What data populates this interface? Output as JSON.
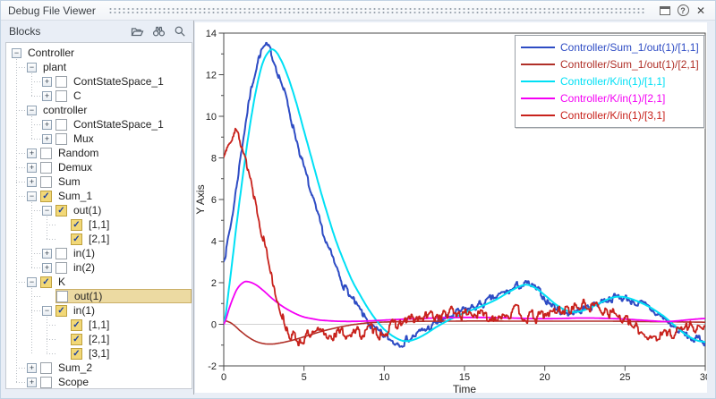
{
  "titlebar": {
    "title": "Debug File Viewer",
    "help_glyph": "?",
    "close_glyph": "✕"
  },
  "left_panel": {
    "header_label": "Blocks",
    "glyphs": {
      "collapse": "−",
      "expand": "+",
      "check": "✓"
    },
    "tree": [
      {
        "label": "Controller",
        "level": 0,
        "expander": "minus"
      },
      {
        "label": "plant",
        "level": 1,
        "expander": "minus"
      },
      {
        "label": "ContStateSpace_1",
        "level": 2,
        "expander": "plus",
        "checkbox": "unchecked"
      },
      {
        "label": "C",
        "level": 2,
        "expander": "plus",
        "checkbox": "unchecked"
      },
      {
        "label": "controller",
        "level": 1,
        "expander": "minus"
      },
      {
        "label": "ContStateSpace_1",
        "level": 2,
        "expander": "plus",
        "checkbox": "unchecked"
      },
      {
        "label": "Mux",
        "level": 2,
        "expander": "plus",
        "checkbox": "unchecked"
      },
      {
        "label": "Random",
        "level": 1,
        "expander": "plus",
        "checkbox": "unchecked"
      },
      {
        "label": "Demux",
        "level": 1,
        "expander": "plus",
        "checkbox": "unchecked"
      },
      {
        "label": "Sum",
        "level": 1,
        "expander": "plus",
        "checkbox": "unchecked"
      },
      {
        "label": "Sum_1",
        "level": 1,
        "expander": "minus",
        "checkbox": "checked"
      },
      {
        "label": "out(1)",
        "level": 2,
        "expander": "minus",
        "checkbox": "checked"
      },
      {
        "label": "[1,1]",
        "level": 3,
        "checkbox": "checked"
      },
      {
        "label": "[2,1]",
        "level": 3,
        "checkbox": "checked"
      },
      {
        "label": "in(1)",
        "level": 2,
        "expander": "plus",
        "checkbox": "unchecked"
      },
      {
        "label": "in(2)",
        "level": 2,
        "expander": "plus",
        "checkbox": "unchecked"
      },
      {
        "label": "K",
        "level": 1,
        "expander": "minus",
        "checkbox": "checked"
      },
      {
        "label": "out(1)",
        "level": 2,
        "checkbox": "unchecked",
        "selected": true
      },
      {
        "label": "in(1)",
        "level": 2,
        "expander": "minus",
        "checkbox": "checked"
      },
      {
        "label": "[1,1]",
        "level": 3,
        "checkbox": "checked"
      },
      {
        "label": "[2,1]",
        "level": 3,
        "checkbox": "checked"
      },
      {
        "label": "[3,1]",
        "level": 3,
        "checkbox": "checked"
      },
      {
        "label": "Sum_2",
        "level": 1,
        "expander": "plus",
        "checkbox": "unchecked"
      },
      {
        "label": "Scope",
        "level": 1,
        "expander": "plus",
        "checkbox": "unchecked"
      }
    ]
  },
  "chart_data": {
    "type": "line",
    "xlabel": "Time",
    "ylabel": "Y Axis",
    "xlim": [
      0,
      30
    ],
    "ylim": [
      -2,
      14
    ],
    "xticks": [
      0,
      5,
      10,
      15,
      20,
      25,
      30
    ],
    "yticks": [
      -2,
      0,
      2,
      4,
      6,
      8,
      10,
      12,
      14
    ],
    "y_minor_step": 1,
    "zero_gridline": true,
    "grid": false,
    "legend_position": "top-right",
    "series": [
      {
        "name": "Controller/Sum_1/out(1)/[1,1]",
        "color": "#2e4cc4",
        "width": 2.0,
        "noise": 0.35,
        "seed": 7,
        "points": [
          [
            0,
            3.2
          ],
          [
            0.3,
            4.2
          ],
          [
            0.6,
            5.6
          ],
          [
            1,
            7.8
          ],
          [
            1.4,
            9.9
          ],
          [
            1.8,
            11.6
          ],
          [
            2.1,
            12.6
          ],
          [
            2.4,
            13.2
          ],
          [
            2.7,
            13.3
          ],
          [
            3,
            12.9
          ],
          [
            3.4,
            12.1
          ],
          [
            3.8,
            11.1
          ],
          [
            4.2,
            9.9
          ],
          [
            4.6,
            8.7
          ],
          [
            5,
            7.5
          ],
          [
            5.5,
            6.1
          ],
          [
            6,
            4.8
          ],
          [
            6.5,
            3.7
          ],
          [
            7,
            2.7
          ],
          [
            7.5,
            1.9
          ],
          [
            8,
            1.2
          ],
          [
            8.5,
            0.6
          ],
          [
            9,
            0.1
          ],
          [
            9.5,
            -0.35
          ],
          [
            10,
            -0.6
          ],
          [
            10.7,
            -0.85
          ],
          [
            11.3,
            -0.75
          ],
          [
            12,
            -0.5
          ],
          [
            12.7,
            -0.2
          ],
          [
            13.5,
            0.15
          ],
          [
            14.5,
            0.5
          ],
          [
            15.5,
            0.8
          ],
          [
            16.2,
            1.0
          ],
          [
            17,
            1.3
          ],
          [
            17.8,
            1.6
          ],
          [
            18.6,
            1.9
          ],
          [
            19.2,
            1.8
          ],
          [
            19.8,
            1.4
          ],
          [
            20.5,
            0.9
          ],
          [
            21.2,
            0.6
          ],
          [
            21.8,
            0.6
          ],
          [
            22.5,
            0.75
          ],
          [
            23.2,
            1.0
          ],
          [
            24,
            1.25
          ],
          [
            24.6,
            1.3
          ],
          [
            25.2,
            1.2
          ],
          [
            26,
            0.95
          ],
          [
            26.7,
            0.65
          ],
          [
            27.4,
            0.3
          ],
          [
            28,
            -0.1
          ],
          [
            28.6,
            -0.45
          ],
          [
            29.2,
            -0.7
          ],
          [
            30,
            -0.8
          ]
        ]
      },
      {
        "name": "Controller/Sum_1/out(1)/[2,1]",
        "color": "#b03028",
        "width": 1.6,
        "noise": 0,
        "seed": 1,
        "points": [
          [
            0,
            0.18
          ],
          [
            0.3,
            0.12
          ],
          [
            0.6,
            -0.02
          ],
          [
            1,
            -0.3
          ],
          [
            1.5,
            -0.6
          ],
          [
            2,
            -0.82
          ],
          [
            2.5,
            -0.93
          ],
          [
            3,
            -0.95
          ],
          [
            3.5,
            -0.9
          ],
          [
            4,
            -0.82
          ],
          [
            4.5,
            -0.72
          ],
          [
            5,
            -0.6
          ],
          [
            5.5,
            -0.48
          ],
          [
            6,
            -0.36
          ],
          [
            6.5,
            -0.26
          ],
          [
            7,
            -0.17
          ],
          [
            7.5,
            -0.09
          ],
          [
            8,
            -0.02
          ],
          [
            9,
            0.07
          ],
          [
            10,
            0.11
          ],
          [
            12,
            0.14
          ],
          [
            14,
            0.15
          ],
          [
            16,
            0.16
          ],
          [
            18,
            0.15
          ],
          [
            20,
            0.15
          ],
          [
            22,
            0.15
          ],
          [
            24,
            0.15
          ],
          [
            26,
            0.13
          ],
          [
            28,
            0.12
          ],
          [
            30,
            0.1
          ]
        ]
      },
      {
        "name": "Controller/K/in(1)/[1,1]",
        "color": "#00e0f5",
        "width": 2.0,
        "noise": 0,
        "seed": 1,
        "points": [
          [
            0,
            0
          ],
          [
            0.4,
            2.2
          ],
          [
            0.8,
            4.8
          ],
          [
            1.2,
            7.2
          ],
          [
            1.6,
            9.4
          ],
          [
            2,
            11.2
          ],
          [
            2.4,
            12.5
          ],
          [
            2.8,
            13.1
          ],
          [
            3.1,
            13.2
          ],
          [
            3.5,
            12.8
          ],
          [
            4,
            11.9
          ],
          [
            4.5,
            10.7
          ],
          [
            5,
            9.3
          ],
          [
            5.5,
            7.9
          ],
          [
            6,
            6.5
          ],
          [
            6.5,
            5.2
          ],
          [
            7,
            4.0
          ],
          [
            7.5,
            3.0
          ],
          [
            8,
            2.1
          ],
          [
            8.5,
            1.4
          ],
          [
            9,
            0.75
          ],
          [
            9.5,
            0.2
          ],
          [
            10,
            -0.25
          ],
          [
            10.6,
            -0.6
          ],
          [
            11.2,
            -0.8
          ],
          [
            11.8,
            -0.75
          ],
          [
            12.5,
            -0.5
          ],
          [
            13.2,
            -0.15
          ],
          [
            14,
            0.2
          ],
          [
            15,
            0.55
          ],
          [
            16,
            0.85
          ],
          [
            17,
            1.2
          ],
          [
            18,
            1.65
          ],
          [
            18.8,
            1.9
          ],
          [
            19.4,
            1.75
          ],
          [
            20,
            1.4
          ],
          [
            20.7,
            0.95
          ],
          [
            21.4,
            0.65
          ],
          [
            22,
            0.6
          ],
          [
            22.7,
            0.75
          ],
          [
            23.5,
            1.05
          ],
          [
            24.3,
            1.3
          ],
          [
            25,
            1.3
          ],
          [
            25.8,
            1.1
          ],
          [
            26.6,
            0.8
          ],
          [
            27.4,
            0.4
          ],
          [
            28,
            0.0
          ],
          [
            28.7,
            -0.45
          ],
          [
            29.4,
            -0.75
          ],
          [
            30,
            -0.85
          ]
        ]
      },
      {
        "name": "Controller/K/in(1)/[2,1]",
        "color": "#f400f4",
        "width": 1.8,
        "noise": 0,
        "seed": 1,
        "points": [
          [
            0,
            0
          ],
          [
            0.4,
            0.9
          ],
          [
            0.8,
            1.65
          ],
          [
            1.2,
            2.0
          ],
          [
            1.5,
            2.05
          ],
          [
            2,
            1.9
          ],
          [
            2.5,
            1.6
          ],
          [
            3,
            1.25
          ],
          [
            3.5,
            0.95
          ],
          [
            4,
            0.7
          ],
          [
            4.5,
            0.5
          ],
          [
            5,
            0.35
          ],
          [
            5.5,
            0.27
          ],
          [
            6,
            0.2
          ],
          [
            7,
            0.15
          ],
          [
            8,
            0.14
          ],
          [
            9,
            0.16
          ],
          [
            10,
            0.2
          ],
          [
            11,
            0.24
          ],
          [
            12,
            0.27
          ],
          [
            13,
            0.3
          ],
          [
            14,
            0.32
          ],
          [
            15,
            0.33
          ],
          [
            16,
            0.33
          ],
          [
            17,
            0.32
          ],
          [
            18,
            0.3
          ],
          [
            19,
            0.28
          ],
          [
            20,
            0.27
          ],
          [
            21,
            0.28
          ],
          [
            22,
            0.3
          ],
          [
            23,
            0.3
          ],
          [
            24,
            0.28
          ],
          [
            25,
            0.25
          ],
          [
            26,
            0.2
          ],
          [
            27,
            0.15
          ],
          [
            27.5,
            0.13
          ],
          [
            28,
            0.15
          ],
          [
            29,
            0.22
          ],
          [
            30,
            0.28
          ]
        ]
      },
      {
        "name": "Controller/K/in(1)/[3,1]",
        "color": "#c8221c",
        "width": 1.8,
        "noise": 0.5,
        "seed": 13,
        "points": [
          [
            0,
            8.0
          ],
          [
            0.25,
            8.9
          ],
          [
            0.5,
            9.25
          ],
          [
            0.7,
            9.3
          ],
          [
            0.9,
            9.0
          ],
          [
            1.2,
            8.4
          ],
          [
            1.5,
            7.5
          ],
          [
            1.9,
            6.2
          ],
          [
            2.3,
            4.8
          ],
          [
            2.7,
            3.4
          ],
          [
            3.1,
            2.0
          ],
          [
            3.5,
            0.9
          ],
          [
            3.9,
            -0.1
          ],
          [
            4.3,
            -0.6
          ],
          [
            4.7,
            -0.75
          ],
          [
            5.1,
            -0.6
          ],
          [
            5.5,
            -0.6
          ],
          [
            6,
            -0.45
          ],
          [
            6.5,
            -0.55
          ],
          [
            7,
            -0.4
          ],
          [
            7.5,
            -0.5
          ],
          [
            8,
            -0.35
          ],
          [
            8.5,
            -0.45
          ],
          [
            9,
            -0.3
          ],
          [
            9.5,
            -0.4
          ],
          [
            10,
            -0.3
          ],
          [
            10.5,
            -0.15
          ],
          [
            11,
            0.05
          ],
          [
            11.5,
            0.2
          ],
          [
            12,
            0.2
          ],
          [
            12.5,
            0.3
          ],
          [
            13,
            0.4
          ],
          [
            13.5,
            0.4
          ],
          [
            14,
            0.5
          ],
          [
            14.5,
            0.55
          ],
          [
            15,
            0.5
          ],
          [
            15.5,
            0.55
          ],
          [
            16,
            0.45
          ],
          [
            16.5,
            0.25
          ],
          [
            17,
            0.45
          ],
          [
            17.5,
            0.55
          ],
          [
            18,
            0.55
          ],
          [
            18.5,
            0.5
          ],
          [
            19,
            0.35
          ],
          [
            19.5,
            0.3
          ],
          [
            20,
            0.45
          ],
          [
            20.7,
            0.6
          ],
          [
            21.4,
            0.75
          ],
          [
            22,
            0.85
          ],
          [
            22.6,
            0.9
          ],
          [
            23.2,
            0.85
          ],
          [
            23.8,
            0.75
          ],
          [
            24.4,
            0.5
          ],
          [
            25,
            0.15
          ],
          [
            25.6,
            -0.2
          ],
          [
            26.2,
            -0.45
          ],
          [
            26.8,
            -0.55
          ],
          [
            27.4,
            -0.5
          ],
          [
            28,
            -0.35
          ],
          [
            28.6,
            -0.2
          ],
          [
            29.2,
            -0.05
          ],
          [
            29.6,
            -0.1
          ],
          [
            30,
            -0.2
          ]
        ]
      }
    ]
  }
}
